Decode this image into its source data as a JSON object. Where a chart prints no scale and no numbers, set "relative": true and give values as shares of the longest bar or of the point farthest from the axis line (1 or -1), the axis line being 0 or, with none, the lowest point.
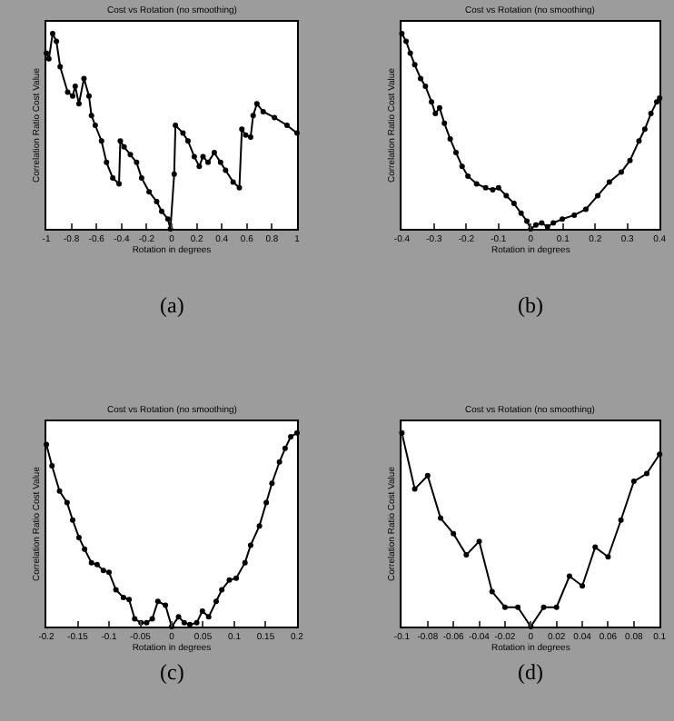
{
  "chart_data": [
    {
      "type": "line",
      "title": "Cost vs Rotation (no smoothing)",
      "xlabel": "Rotation in degrees",
      "ylabel": "Correlation Ratio Cost Value",
      "relative": true,
      "marker": "circle",
      "annotations": [
        "(a)"
      ],
      "xlim": [
        -1,
        1
      ],
      "xticks": [
        -1,
        -0.8,
        -0.6,
        -0.4,
        -0.2,
        0,
        0.2,
        0.4,
        0.6,
        0.8,
        1
      ],
      "x": [
        -1,
        -0.98,
        -0.95,
        -0.92,
        -0.89,
        -0.83,
        -0.79,
        -0.77,
        -0.74,
        -0.7,
        -0.66,
        -0.64,
        -0.61,
        -0.56,
        -0.52,
        -0.47,
        -0.42,
        -0.41,
        -0.38,
        -0.33,
        -0.28,
        -0.24,
        -0.18,
        -0.12,
        -0.08,
        -0.03,
        -0.01,
        0.02,
        0.03,
        0.09,
        0.13,
        0.18,
        0.22,
        0.25,
        0.29,
        0.34,
        0.39,
        0.43,
        0.49,
        0.54,
        0.56,
        0.59,
        0.63,
        0.65,
        0.68,
        0.73,
        0.82,
        0.92,
        1
      ],
      "series": [
        {
          "color": "#000000",
          "values": [
            0.9,
            0.87,
            1,
            0.96,
            0.83,
            0.7,
            0.68,
            0.73,
            0.64,
            0.77,
            0.68,
            0.58,
            0.53,
            0.45,
            0.34,
            0.26,
            0.23,
            0.45,
            0.42,
            0.38,
            0.34,
            0.26,
            0.19,
            0.14,
            0.09,
            0.05,
            0,
            0.28,
            0.53,
            0.49,
            0.45,
            0.37,
            0.32,
            0.37,
            0.34,
            0.39,
            0.34,
            0.3,
            0.24,
            0.21,
            0.51,
            0.48,
            0.47,
            0.58,
            0.64,
            0.6,
            0.57,
            0.53,
            0.49
          ]
        }
      ]
    },
    {
      "type": "line",
      "title": "Cost vs Rotation (no smoothing)",
      "xlabel": "Rotation in degrees",
      "ylabel": "Correlation Ratio Cost Value",
      "relative": true,
      "marker": "circle",
      "annotations": [
        "(b)"
      ],
      "xlim": [
        -0.4,
        0.4
      ],
      "xticks": [
        -0.4,
        -0.3,
        -0.2,
        -0.1,
        0,
        0.1,
        0.2,
        0.3,
        0.4
      ],
      "x": [
        -0.4,
        -0.387,
        -0.374,
        -0.36,
        -0.342,
        -0.327,
        -0.308,
        -0.296,
        -0.283,
        -0.268,
        -0.25,
        -0.232,
        -0.213,
        -0.195,
        -0.168,
        -0.14,
        -0.118,
        -0.1,
        -0.076,
        -0.052,
        -0.03,
        -0.012,
        0,
        0.016,
        0.034,
        0.052,
        0.07,
        0.098,
        0.135,
        0.171,
        0.208,
        0.244,
        0.281,
        0.308,
        0.336,
        0.354,
        0.373,
        0.391,
        0.4
      ],
      "series": [
        {
          "color": "#000000",
          "values": [
            1,
            0.96,
            0.9,
            0.84,
            0.77,
            0.73,
            0.65,
            0.59,
            0.62,
            0.54,
            0.46,
            0.39,
            0.32,
            0.27,
            0.23,
            0.21,
            0.2,
            0.21,
            0.17,
            0.13,
            0.08,
            0.04,
            0,
            0.02,
            0.03,
            0.01,
            0.03,
            0.05,
            0.07,
            0.1,
            0.17,
            0.24,
            0.29,
            0.35,
            0.45,
            0.51,
            0.59,
            0.65,
            0.67
          ]
        }
      ]
    },
    {
      "type": "line",
      "title": "Cost vs Rotation (no smoothing)",
      "xlabel": "Rotation in degrees",
      "ylabel": "Correlation Ratio Cost Value",
      "relative": true,
      "marker": "circle",
      "annotations": [
        "(c)"
      ],
      "xlim": [
        -0.2,
        0.2
      ],
      "xticks": [
        -0.2,
        -0.15,
        -0.1,
        -0.05,
        0,
        0.05,
        0.1,
        0.15,
        0.2
      ],
      "x": [
        -0.2,
        -0.191,
        -0.179,
        -0.167,
        -0.158,
        -0.148,
        -0.139,
        -0.128,
        -0.119,
        -0.109,
        -0.1,
        -0.089,
        -0.077,
        -0.068,
        -0.059,
        -0.049,
        -0.04,
        -0.031,
        -0.022,
        -0.01,
        0,
        0.011,
        0.02,
        0.029,
        0.04,
        0.049,
        0.059,
        0.071,
        0.08,
        0.092,
        0.103,
        0.117,
        0.126,
        0.14,
        0.151,
        0.16,
        0.172,
        0.181,
        0.19,
        0.2
      ],
      "series": [
        {
          "color": "#000000",
          "values": [
            0.94,
            0.83,
            0.7,
            0.64,
            0.55,
            0.46,
            0.4,
            0.33,
            0.32,
            0.29,
            0.28,
            0.19,
            0.15,
            0.14,
            0.04,
            0.02,
            0.02,
            0.04,
            0.13,
            0.11,
            0,
            0.05,
            0.02,
            0.01,
            0.02,
            0.08,
            0.05,
            0.13,
            0.19,
            0.24,
            0.25,
            0.33,
            0.42,
            0.52,
            0.64,
            0.74,
            0.85,
            0.92,
            0.98,
            1
          ]
        }
      ]
    },
    {
      "type": "line",
      "title": "Cost vs Rotation (no smoothing)",
      "xlabel": "Rotation in degrees",
      "ylabel": "Correlation Ratio Cost Value",
      "relative": true,
      "marker": "circle",
      "annotations": [
        "(d)"
      ],
      "xlim": [
        -0.1,
        0.1
      ],
      "xticks": [
        -0.1,
        -0.08,
        -0.06,
        -0.04,
        -0.02,
        0,
        0.02,
        0.04,
        0.06,
        0.08,
        0.1
      ],
      "x": [
        -0.1,
        -0.09,
        -0.08,
        -0.07,
        -0.06,
        -0.05,
        -0.04,
        -0.03,
        -0.02,
        -0.01,
        0,
        0.01,
        0.02,
        0.03,
        0.04,
        0.05,
        0.06,
        0.07,
        0.08,
        0.09,
        0.1
      ],
      "series": [
        {
          "color": "#000000",
          "values": [
            1,
            0.71,
            0.78,
            0.56,
            0.48,
            0.37,
            0.44,
            0.18,
            0.1,
            0.1,
            0,
            0.1,
            0.1,
            0.26,
            0.21,
            0.41,
            0.36,
            0.55,
            0.75,
            0.79,
            0.89
          ]
        }
      ]
    }
  ]
}
